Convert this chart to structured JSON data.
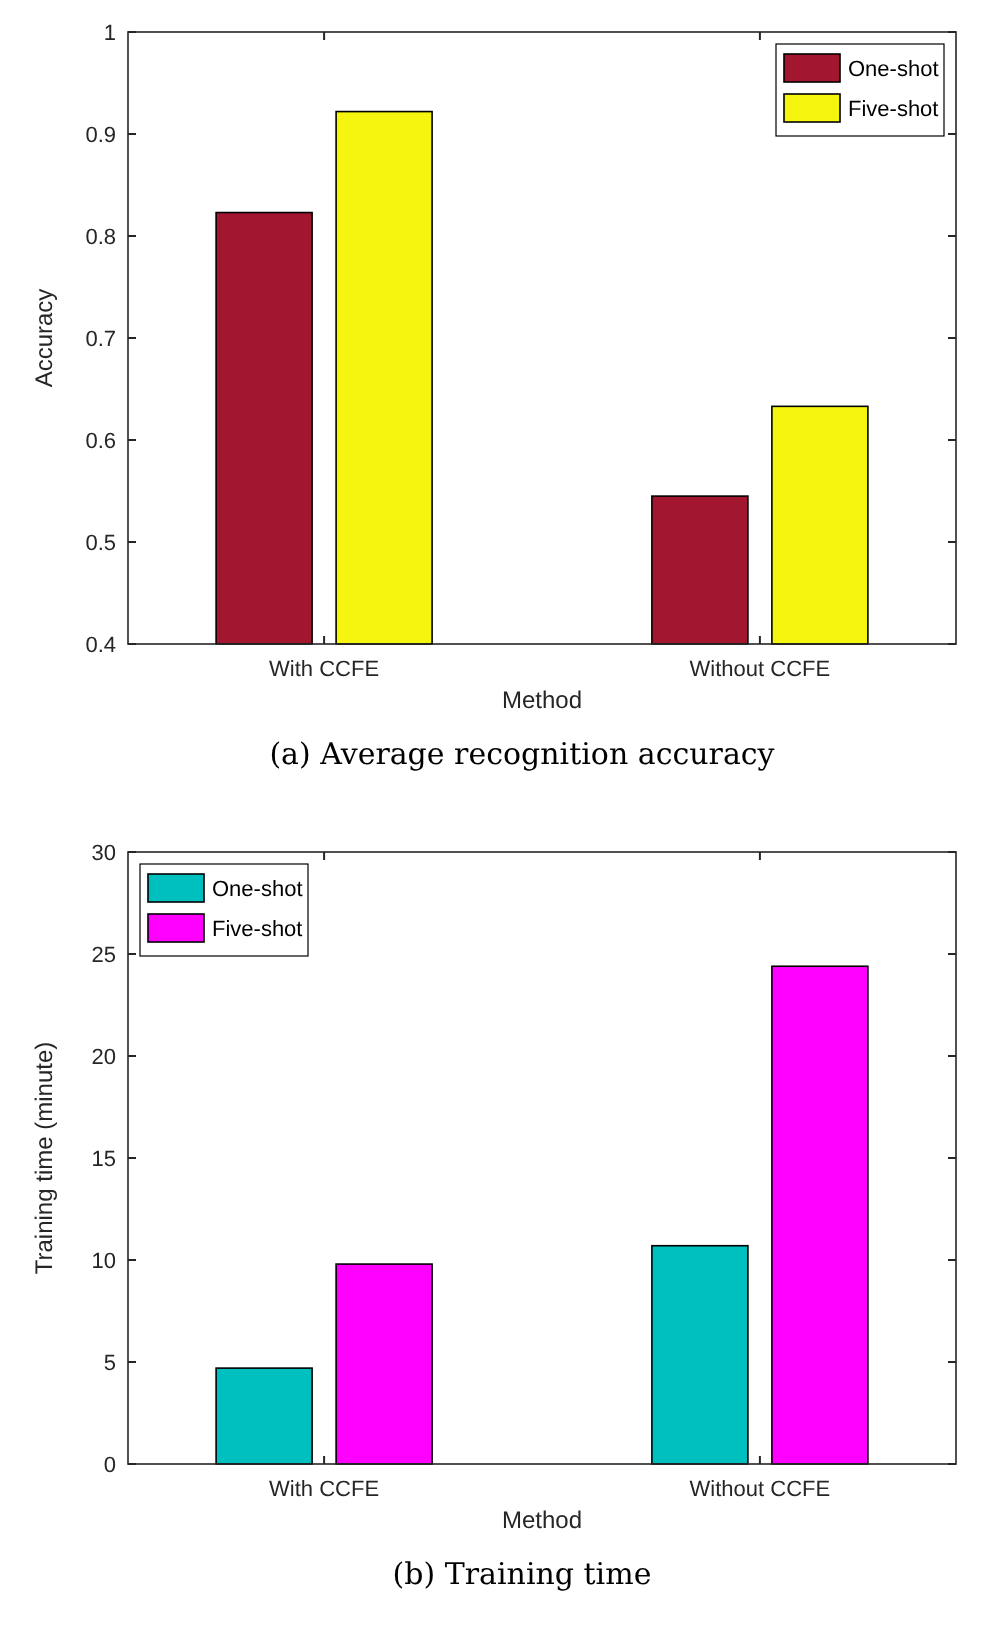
{
  "chart_data": [
    {
      "type": "bar",
      "title": "(a)  Average recognition accuracy",
      "xlabel": "Method",
      "ylabel": "Accuracy",
      "categories": [
        "With CCFE",
        "Without CCFE"
      ],
      "series": [
        {
          "name": "One-shot",
          "color": "#a2172f",
          "values": [
            0.823,
            0.545
          ]
        },
        {
          "name": "Five-shot",
          "color": "#f5f50f",
          "values": [
            0.922,
            0.633
          ]
        }
      ],
      "ylim": [
        0.4,
        1
      ],
      "yticks": [
        0.4,
        0.5,
        0.6,
        0.7,
        0.8,
        0.9,
        1
      ],
      "grid": false,
      "legend": "top right"
    },
    {
      "type": "bar",
      "title": "(b)  Training time",
      "xlabel": "Method",
      "ylabel": "Training time (minute)",
      "categories": [
        "With CCFE",
        "Without CCFE"
      ],
      "series": [
        {
          "name": "One-shot",
          "color": "#00bfbf",
          "values": [
            4.7,
            10.7
          ]
        },
        {
          "name": "Five-shot",
          "color": "#ff00ff",
          "values": [
            9.8,
            24.4
          ]
        }
      ],
      "ylim": [
        0,
        30
      ],
      "yticks": [
        0,
        5,
        10,
        15,
        20,
        25,
        30
      ],
      "grid": false,
      "legend": "top left"
    }
  ]
}
